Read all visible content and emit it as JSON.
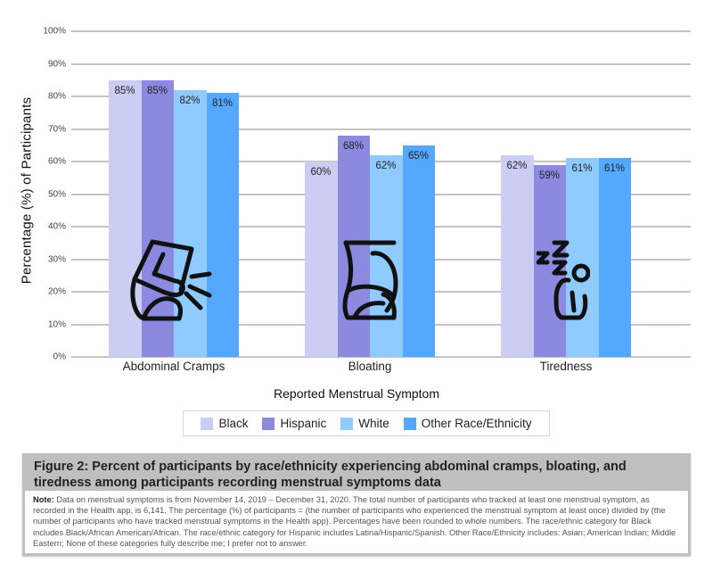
{
  "chart_data": {
    "type": "bar",
    "title": "Figure 2: Percent of participants by race/ethnicity experiencing abdominal cramps, bloating, and tiredness among participants recording menstrual symptoms data",
    "xlabel": "Reported Menstrual Symptom",
    "ylabel": "Percentage (%) of Participants",
    "ylim": [
      0,
      100
    ],
    "yticks": [
      "0%",
      "10%",
      "20%",
      "30%",
      "40%",
      "50%",
      "60%",
      "70%",
      "80%",
      "90%",
      "100%"
    ],
    "grid": true,
    "legend_position": "bottom",
    "categories": [
      "Abdominal Cramps",
      "Bloating",
      "Tiredness"
    ],
    "series": [
      {
        "name": "Black",
        "color": "#cccdf2",
        "values": [
          85,
          60,
          62
        ],
        "labels": [
          "85%",
          "60%",
          "62%"
        ]
      },
      {
        "name": "Hispanic",
        "color": "#8b8ae0",
        "values": [
          85,
          68,
          59
        ],
        "labels": [
          "85%",
          "68%",
          "59%"
        ]
      },
      {
        "name": "White",
        "color": "#8fcbff",
        "values": [
          82,
          62,
          61
        ],
        "labels": [
          "82%",
          "62%",
          "61%"
        ]
      },
      {
        "name": "Other Race/Ethnicity",
        "color": "#55a8ff",
        "values": [
          81,
          65,
          61
        ],
        "labels": [
          "81%",
          "65%",
          "61%"
        ]
      }
    ],
    "icons": [
      "abdominal-cramps-icon",
      "bloating-icon",
      "tiredness-sleep-icon"
    ]
  },
  "caption": {
    "title": "Figure 2: Percent of participants by race/ethnicity experiencing abdominal cramps, bloating, and tiredness among participants recording menstrual symptoms data",
    "note_label": "Note:",
    "note_text": " Data on menstrual symptoms is from November 14, 2019 – December 31, 2020. The total number of participants who tracked at least one menstrual symptom, as recorded in the Health app, is 6,141. The percentage (%) of participants = (the number of participants who experienced the menstrual symptom at least once) divided by (the number of participants who have tracked menstrual symptoms in the Health app). Percentages have been rounded to whole numbers. The race/ethnic category for Black includes Black/African American/African. The race/ethnic category for Hispanic includes Latina/Hispanic/Spanish. Other Race/Ethnicity includes: Asian; American Indian; Middle Eastern; None of these categories fully describe me; I prefer not to answer."
  }
}
